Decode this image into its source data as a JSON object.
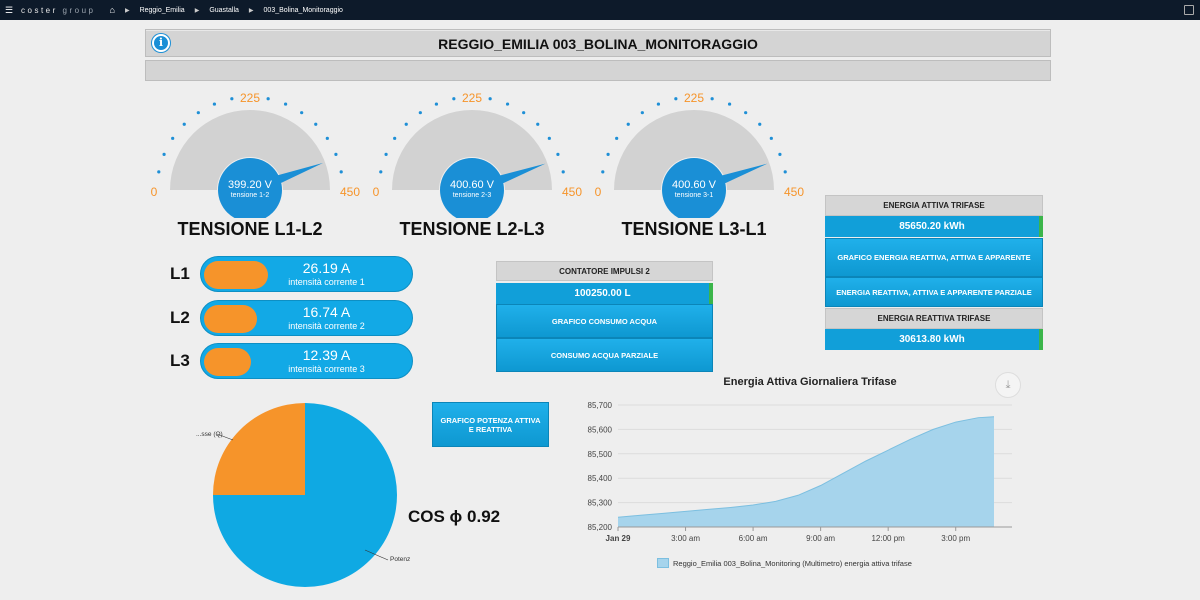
{
  "topbar": {
    "logo_main": "coste",
    "logo_mark": "r",
    "logo_group": "group",
    "breadcrumbs": [
      "Reggio_Emilia",
      "Guastalla",
      "003_Bolina_Monitoraggio"
    ]
  },
  "header": {
    "title": "REGGIO_EMILIA 003_BOLINA_MONITORAGGIO"
  },
  "gauges": [
    {
      "min": "0",
      "mid": "225",
      "max": "450",
      "value": "399.20 V",
      "sub": "tensione 1-2",
      "label": "TENSIONE L1-L2",
      "reading": 399.2
    },
    {
      "min": "0",
      "mid": "225",
      "max": "450",
      "value": "400.60 V",
      "sub": "tensione 2-3",
      "label": "TENSIONE L2-L3",
      "reading": 400.6
    },
    {
      "min": "0",
      "mid": "225",
      "max": "450",
      "value": "400.60 V",
      "sub": "tensione 3-1",
      "label": "TENSIONE L3-L1",
      "reading": 400.6
    }
  ],
  "currents": [
    {
      "label": "L1",
      "value": "26.19 A",
      "sub": "intensità corrente 1",
      "fill_fraction": 0.3
    },
    {
      "label": "L2",
      "value": "16.74 A",
      "sub": "intensità corrente 2",
      "fill_fraction": 0.25
    },
    {
      "label": "L3",
      "value": "12.39 A",
      "sub": "intensità corrente 3",
      "fill_fraction": 0.22
    }
  ],
  "contatore": {
    "header": "CONTATORE IMPULSI 2",
    "value": "100250.00 L",
    "btn1": "GRAFICO CONSUMO ACQUA",
    "btn2": "CONSUMO ACQUA PARZIALE"
  },
  "energia": {
    "attiva_header": "ENERGIA ATTIVA TRIFASE",
    "attiva_value": "85650.20 kWh",
    "btn1": "GRAFICO ENERGIA REATTIVA, ATTIVA E APPARENTE",
    "btn2": "ENERGIA REATTIVA, ATTIVA E APPARENTE PARZIALE",
    "reattiva_header": "ENERGIA REATTIVA TRIFASE",
    "reattiva_value": "30613.80 kWh"
  },
  "potenza_btn": "GRAFICO POTENZA ATTIVA E REATTIVA",
  "cos_phi": "COS ϕ 0.92",
  "pie": {
    "label_q": "...sse (Q)",
    "label_p": "Potenz",
    "colors": {
      "q": "#f6942a",
      "p": "#0fa9e3"
    }
  },
  "chart_data": {
    "type": "area",
    "title": "Energia Attiva Giornaliera Trifase",
    "yticks": [
      "85,200",
      "85,300",
      "85,400",
      "85,500",
      "85,600",
      "85,700"
    ],
    "ylim": [
      85200,
      85700
    ],
    "xticks": [
      "Jan 29",
      "3:00 am",
      "6:00 am",
      "9:00 am",
      "12:00 pm",
      "3:00 pm"
    ],
    "x_hours": [
      0,
      1,
      2,
      3,
      4,
      5,
      6,
      7,
      8,
      9,
      10,
      11,
      12,
      13,
      14,
      15,
      16,
      16.7
    ],
    "y": [
      85240,
      85248,
      85256,
      85264,
      85272,
      85280,
      85290,
      85305,
      85330,
      85370,
      85420,
      85470,
      85515,
      85560,
      85600,
      85630,
      85648,
      85652
    ],
    "series_name": "Reggio_Emilia 003_Bolina_Monitoring (Multimetro) energia attiva trifase",
    "fill_color": "#a6d4ec",
    "line_color": "#7cbfe0"
  }
}
